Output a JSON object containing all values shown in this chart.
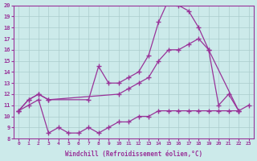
{
  "xlabel": "Windchill (Refroidissement éolien,°C)",
  "bg_color": "#cceaea",
  "grid_color": "#aacccc",
  "line_color": "#993399",
  "xlim": [
    -0.5,
    23.5
  ],
  "ylim": [
    8,
    20
  ],
  "xticks": [
    0,
    1,
    2,
    3,
    4,
    5,
    6,
    7,
    8,
    9,
    10,
    11,
    12,
    13,
    14,
    15,
    16,
    17,
    18,
    19,
    20,
    21,
    22,
    23
  ],
  "yticks": [
    8,
    9,
    10,
    11,
    12,
    13,
    14,
    15,
    16,
    17,
    18,
    19,
    20
  ],
  "series": [
    {
      "x": [
        0,
        1,
        2,
        3,
        7,
        8,
        9,
        10,
        11,
        12,
        13,
        14,
        15,
        16,
        17,
        18,
        19,
        20,
        21,
        22
      ],
      "y": [
        10.5,
        11.5,
        12.0,
        11.5,
        11.5,
        14.5,
        13.0,
        13.0,
        13.5,
        14.0,
        15.5,
        18.5,
        20.5,
        20.0,
        19.5,
        18.0,
        16.0,
        11.0,
        12.0,
        10.5
      ]
    },
    {
      "x": [
        0,
        1,
        2,
        3,
        10,
        11,
        12,
        13,
        14,
        15,
        16,
        17,
        18,
        19,
        22
      ],
      "y": [
        10.5,
        11.5,
        12.0,
        11.5,
        12.0,
        12.5,
        13.0,
        13.5,
        15.0,
        16.0,
        16.0,
        16.5,
        17.0,
        16.0,
        10.5
      ]
    },
    {
      "x": [
        0,
        1,
        2,
        3,
        4,
        5,
        6,
        7,
        8,
        9,
        10,
        11,
        12,
        13,
        14,
        15,
        16,
        17,
        18,
        19,
        20,
        21,
        22,
        23
      ],
      "y": [
        10.5,
        11.0,
        11.5,
        8.5,
        9.0,
        8.5,
        8.5,
        9.0,
        8.5,
        9.0,
        9.5,
        9.5,
        10.0,
        10.0,
        10.5,
        10.5,
        10.5,
        10.5,
        10.5,
        10.5,
        10.5,
        10.5,
        10.5,
        11.0
      ]
    }
  ]
}
